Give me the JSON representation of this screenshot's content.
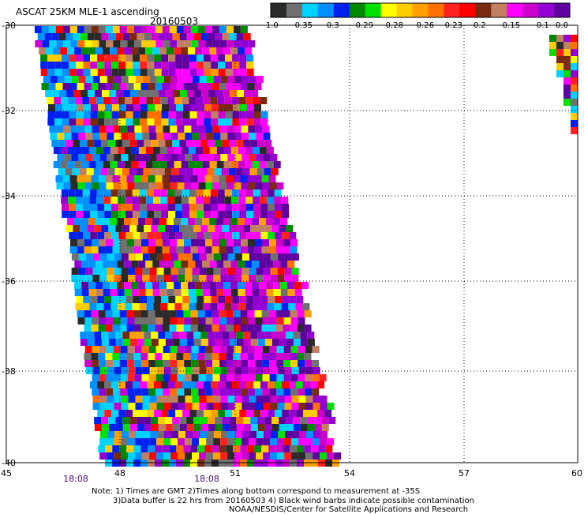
{
  "header": {
    "title": "ASCAT 25KM MLE-1 ascending",
    "date": "20160503"
  },
  "colorbar": {
    "labels": [
      "-1.0",
      "-0.35",
      "-0.3",
      "-0.29",
      "-0.28",
      "-0.26",
      "-0.23",
      "-0.2",
      "-0.15",
      "-0.1",
      "0.0"
    ],
    "colors": [
      "#2a2a2a",
      "#707070",
      "#00d2ff",
      "#0090ff",
      "#0020f0",
      "#008800",
      "#00e000",
      "#ffff00",
      "#ffcc00",
      "#ffa000",
      "#ff7000",
      "#ff2020",
      "#ff0000",
      "#7a2a10",
      "#c08060",
      "#ff00ff",
      "#cc00cc",
      "#9400d3",
      "#6000a0"
    ]
  },
  "map": {
    "y_ticks": [
      "-30",
      "-32",
      "-34",
      "-36",
      "-38",
      "-40"
    ],
    "x_ticks": [
      "45",
      "48",
      "51",
      "54",
      "57",
      "60"
    ],
    "time_labels": [
      "18:08",
      "18:08"
    ],
    "lat_range": [
      -40,
      -30
    ],
    "lon_range": [
      45,
      60
    ]
  },
  "notes": [
    "Note: 1) Times are GMT 2)Times along bottom correspond to measurement at -35S",
    "3)Data buffer is 22 hrs from 20160503 4) Black wind barbs indicate possible contamination",
    "NOAA/NESDIS/Center for Satellite Applications and Research"
  ]
}
